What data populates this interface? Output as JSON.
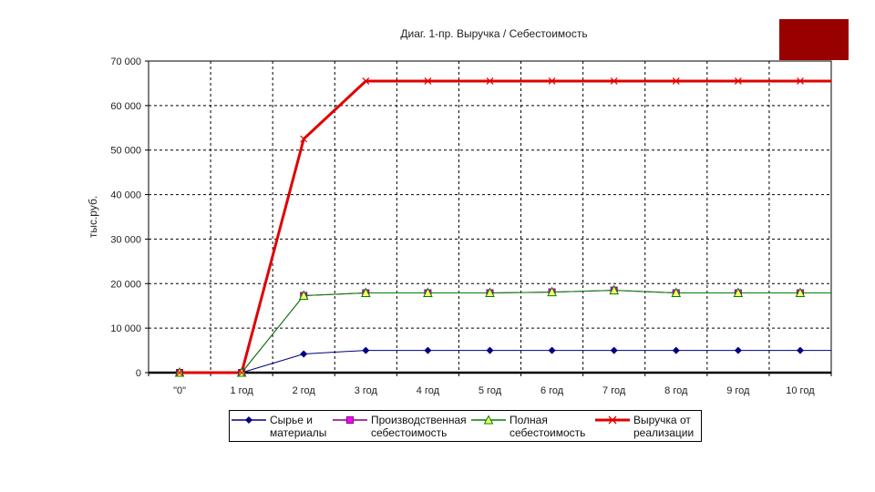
{
  "chart_data": {
    "type": "line",
    "title": "Диаг. 1-пр. Выручка / Себестоимость",
    "xlabel": "",
    "ylabel": "тыс.руб.",
    "categories": [
      "\"0\"",
      "1 год",
      "2 год",
      "3 год",
      "4 год",
      "5 год",
      "6 год",
      "7 год",
      "8 год",
      "9 год",
      "10 год"
    ],
    "ylim": [
      0,
      70000
    ],
    "yticks": [
      0,
      10000,
      20000,
      30000,
      40000,
      50000,
      60000,
      70000
    ],
    "ytick_labels": [
      "0",
      "10 000",
      "20 000",
      "30 000",
      "40 000",
      "50 000",
      "60 000",
      "70 000"
    ],
    "grid": true,
    "legend_position": "bottom",
    "series": [
      {
        "name": "Сырье и материалы",
        "color": "#000080",
        "marker": "diamond",
        "values": [
          0,
          0,
          4200,
          5000,
          5000,
          5000,
          5000,
          5000,
          5000,
          5000,
          5000
        ]
      },
      {
        "name": "Производственная себестоимость",
        "color": "#800080",
        "marker": "square",
        "values": [
          0,
          0,
          17300,
          17900,
          17900,
          17900,
          18100,
          18500,
          17900,
          17900,
          17900
        ]
      },
      {
        "name": "Полная себестоимость",
        "color": "#008000",
        "marker": "triangle",
        "values": [
          0,
          0,
          17300,
          17900,
          17900,
          17900,
          18100,
          18500,
          17900,
          17900,
          17900
        ]
      },
      {
        "name": "Выручка от реализации",
        "color": "#e00000",
        "marker": "star",
        "values": [
          0,
          0,
          52500,
          65500,
          65500,
          65500,
          65500,
          65500,
          65500,
          65500,
          65500
        ]
      }
    ]
  },
  "legend": {
    "items": [
      {
        "label": "Сырье и\nматериалы"
      },
      {
        "label": "Производственная\nсебестоимость"
      },
      {
        "label": "Полная\nсебестоимость"
      },
      {
        "label": "Выручка от\nреализации"
      }
    ]
  }
}
